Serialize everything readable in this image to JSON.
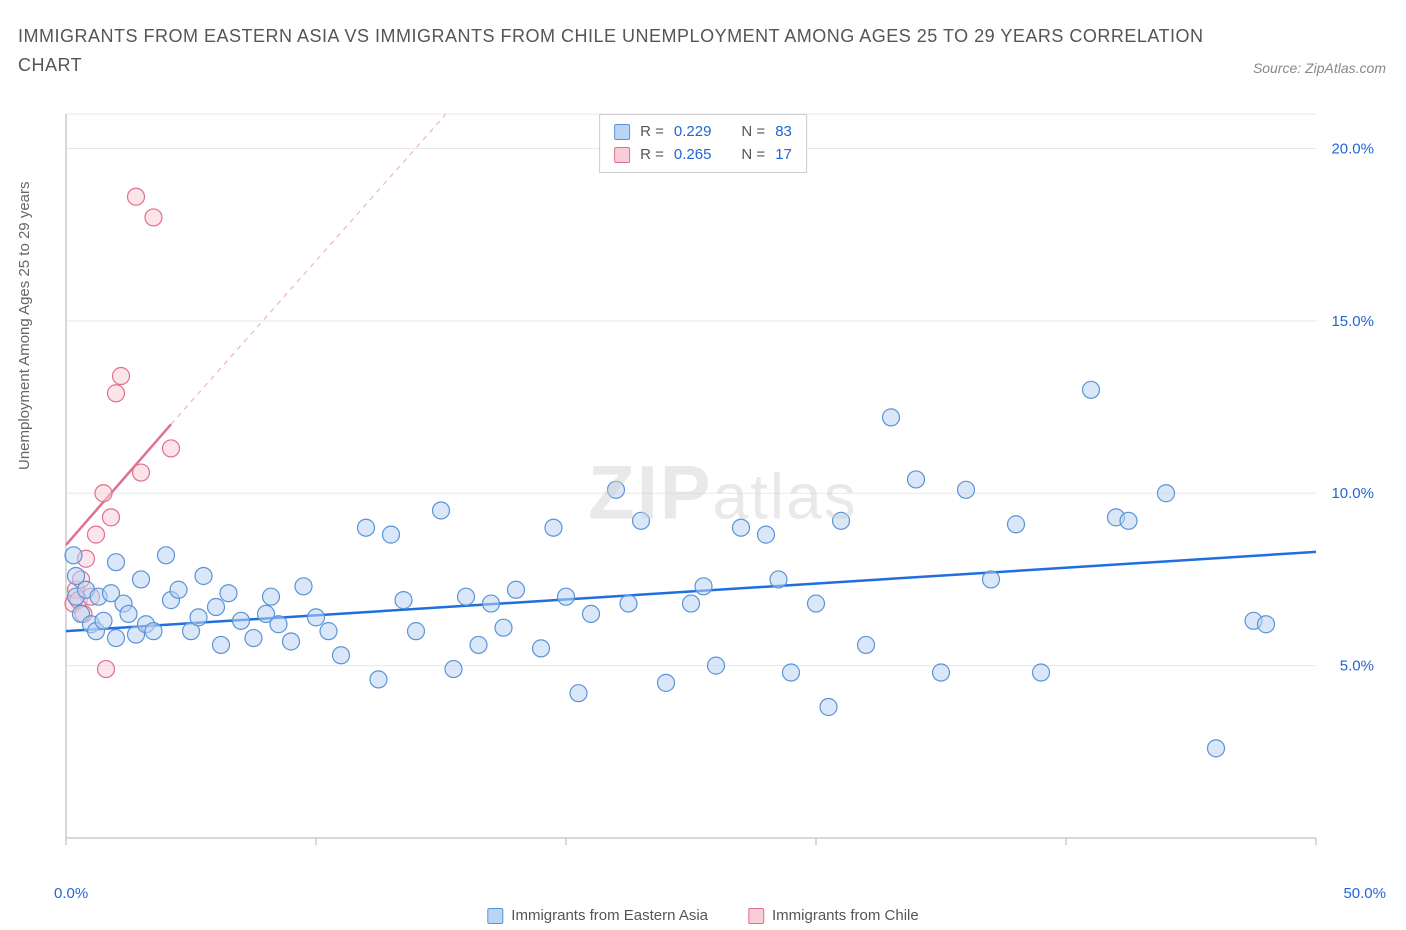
{
  "title": "IMMIGRANTS FROM EASTERN ASIA VS IMMIGRANTS FROM CHILE UNEMPLOYMENT AMONG AGES 25 TO 29 YEARS CORRELATION CHART",
  "source": "Source: ZipAtlas.com",
  "ylabel": "Unemployment Among Ages 25 to 29 years",
  "watermark_zip": "ZIP",
  "watermark_atlas": "atlas",
  "chart": {
    "type": "scatter",
    "xlim": [
      0,
      50
    ],
    "ylim": [
      0,
      21
    ],
    "x_ticks": [
      0,
      10,
      20,
      30,
      40,
      50
    ],
    "x_tick_labels": [
      "0.0%",
      "",
      "",
      "",
      "",
      "50.0%"
    ],
    "y_ticks": [
      5,
      10,
      15,
      20
    ],
    "y_tick_labels": [
      "5.0%",
      "10.0%",
      "15.0%",
      "20.0%"
    ],
    "grid_color": "#e8e8e8",
    "axis_color": "#cccccc",
    "background_color": "#ffffff",
    "marker_radius": 8.5,
    "marker_stroke_width": 1.2,
    "series": [
      {
        "name": "Immigrants from Eastern Asia",
        "fill": "#b9d4f4",
        "stroke": "#5b94d6",
        "fill_opacity": 0.55,
        "R": "0.229",
        "N": "83",
        "regression": {
          "x1": 0,
          "y1": 6.0,
          "x2": 50,
          "y2": 8.3,
          "color": "#1f6fe0",
          "width": 2.5
        },
        "points": [
          [
            0.3,
            8.2
          ],
          [
            0.4,
            7.0
          ],
          [
            0.4,
            7.6
          ],
          [
            0.6,
            6.5
          ],
          [
            0.8,
            7.2
          ],
          [
            1.0,
            6.2
          ],
          [
            1.2,
            6.0
          ],
          [
            1.3,
            7.0
          ],
          [
            1.5,
            6.3
          ],
          [
            1.8,
            7.1
          ],
          [
            2.0,
            5.8
          ],
          [
            2.0,
            8.0
          ],
          [
            2.3,
            6.8
          ],
          [
            2.5,
            6.5
          ],
          [
            2.8,
            5.9
          ],
          [
            3.0,
            7.5
          ],
          [
            3.2,
            6.2
          ],
          [
            3.5,
            6.0
          ],
          [
            4.0,
            8.2
          ],
          [
            4.2,
            6.9
          ],
          [
            4.5,
            7.2
          ],
          [
            5.0,
            6.0
          ],
          [
            5.3,
            6.4
          ],
          [
            5.5,
            7.6
          ],
          [
            6.0,
            6.7
          ],
          [
            6.2,
            5.6
          ],
          [
            6.5,
            7.1
          ],
          [
            7.0,
            6.3
          ],
          [
            7.5,
            5.8
          ],
          [
            8.0,
            6.5
          ],
          [
            8.2,
            7.0
          ],
          [
            8.5,
            6.2
          ],
          [
            9.0,
            5.7
          ],
          [
            9.5,
            7.3
          ],
          [
            10.0,
            6.4
          ],
          [
            10.5,
            6.0
          ],
          [
            11.0,
            5.3
          ],
          [
            12.0,
            9.0
          ],
          [
            12.5,
            4.6
          ],
          [
            13.0,
            8.8
          ],
          [
            13.5,
            6.9
          ],
          [
            14.0,
            6.0
          ],
          [
            15.0,
            9.5
          ],
          [
            15.5,
            4.9
          ],
          [
            16.0,
            7.0
          ],
          [
            16.5,
            5.6
          ],
          [
            17.0,
            6.8
          ],
          [
            17.5,
            6.1
          ],
          [
            18.0,
            7.2
          ],
          [
            19.0,
            5.5
          ],
          [
            19.5,
            9.0
          ],
          [
            20.0,
            7.0
          ],
          [
            20.5,
            4.2
          ],
          [
            21.0,
            6.5
          ],
          [
            22.0,
            10.1
          ],
          [
            22.5,
            6.8
          ],
          [
            23.0,
            9.2
          ],
          [
            24.0,
            4.5
          ],
          [
            25.0,
            6.8
          ],
          [
            25.5,
            7.3
          ],
          [
            26.0,
            5.0
          ],
          [
            27.0,
            9.0
          ],
          [
            28.0,
            8.8
          ],
          [
            28.5,
            7.5
          ],
          [
            29.0,
            4.8
          ],
          [
            30.0,
            6.8
          ],
          [
            30.5,
            3.8
          ],
          [
            31.0,
            9.2
          ],
          [
            32.0,
            5.6
          ],
          [
            33.0,
            12.2
          ],
          [
            34.0,
            10.4
          ],
          [
            35.0,
            4.8
          ],
          [
            36.0,
            10.1
          ],
          [
            37.0,
            7.5
          ],
          [
            38.0,
            9.1
          ],
          [
            39.0,
            4.8
          ],
          [
            41.0,
            13.0
          ],
          [
            42.0,
            9.3
          ],
          [
            42.5,
            9.2
          ],
          [
            44.0,
            10.0
          ],
          [
            46.0,
            2.6
          ],
          [
            47.5,
            6.3
          ],
          [
            48.0,
            6.2
          ]
        ]
      },
      {
        "name": "Immigrants from Chile",
        "fill": "#f7cdd8",
        "stroke": "#e0708f",
        "fill_opacity": 0.55,
        "R": "0.265",
        "N": "17",
        "regression": {
          "x1": 0,
          "y1": 8.5,
          "x2": 4.2,
          "y2": 12.0,
          "color": "#e0708f",
          "width": 2.5
        },
        "regression_ext": {
          "x1": 4.2,
          "y1": 12.0,
          "x2": 15.2,
          "y2": 21.0,
          "color": "#f2b3c3",
          "width": 1.2,
          "dash": "5,5"
        },
        "points": [
          [
            0.3,
            6.8
          ],
          [
            0.4,
            7.2
          ],
          [
            0.5,
            6.9
          ],
          [
            0.6,
            7.5
          ],
          [
            0.7,
            6.5
          ],
          [
            0.8,
            8.1
          ],
          [
            1.0,
            7.0
          ],
          [
            1.2,
            8.8
          ],
          [
            1.5,
            10.0
          ],
          [
            1.6,
            4.9
          ],
          [
            1.8,
            9.3
          ],
          [
            2.0,
            12.9
          ],
          [
            2.2,
            13.4
          ],
          [
            2.8,
            18.6
          ],
          [
            3.0,
            10.6
          ],
          [
            3.5,
            18.0
          ],
          [
            4.2,
            11.3
          ]
        ]
      }
    ]
  },
  "legend_top": {
    "rows": [
      {
        "swatch_fill": "#b9d4f4",
        "swatch_stroke": "#5b94d6",
        "r_label": "R =",
        "r_val": "0.229",
        "n_label": "N =",
        "n_val": "83"
      },
      {
        "swatch_fill": "#f7cdd8",
        "swatch_stroke": "#e0708f",
        "r_label": "R =",
        "r_val": "0.265",
        "n_label": "N =",
        "n_val": "17"
      }
    ]
  },
  "legend_bottom": [
    {
      "swatch_fill": "#b9d4f4",
      "swatch_stroke": "#5b94d6",
      "label": "Immigrants from Eastern Asia"
    },
    {
      "swatch_fill": "#f7cdd8",
      "swatch_stroke": "#e0708f",
      "label": "Immigrants from Chile"
    }
  ]
}
